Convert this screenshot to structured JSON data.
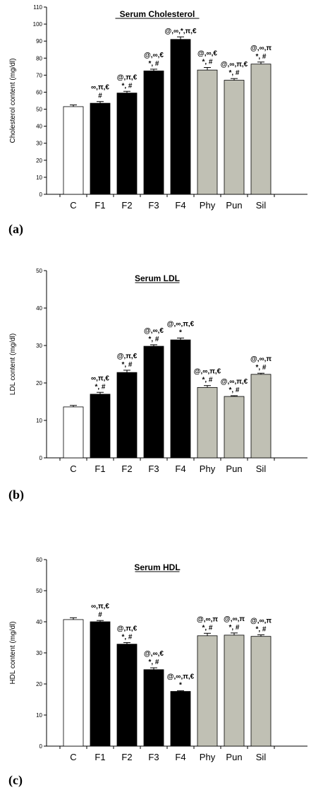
{
  "colors": {
    "control_fill": "#ffffff",
    "f_fill": "#000000",
    "extract_fill": "#c0c0b4",
    "bar_stroke": "#000000",
    "axis": "#000000"
  },
  "chart_data": [
    {
      "panel_label": "(a)",
      "type": "bar",
      "title": "Serum Cholesterol",
      "ylabel": "Cholesterol content  (mg/dl)",
      "ylim": [
        0,
        110
      ],
      "yticks": [
        0,
        10,
        20,
        30,
        40,
        50,
        60,
        70,
        80,
        90,
        100,
        110
      ],
      "categories": [
        "C",
        "F1",
        "F2",
        "F3",
        "F4",
        "Phy",
        "Pun",
        "Sil"
      ],
      "values": [
        51.5,
        53.5,
        59.5,
        72.5,
        91,
        73,
        67,
        76.5
      ],
      "errors": [
        1,
        1,
        1,
        1,
        1.5,
        1.5,
        1,
        1.2
      ],
      "groups": [
        "control",
        "f",
        "f",
        "f",
        "f",
        "extract",
        "extract",
        "extract"
      ],
      "annotations": [
        [],
        [
          "∞,π,€",
          "#"
        ],
        [
          "@,π,€",
          "*, #"
        ],
        [
          "@,∞,€",
          "*, #"
        ],
        [
          "@,∞,*,π,€"
        ],
        [
          "@,∞,€",
          "*, #"
        ],
        [
          "@,∞,π,€",
          "*, #"
        ],
        [
          "@,∞,π",
          "*, #"
        ]
      ],
      "grid": false
    },
    {
      "panel_label": "(b)",
      "type": "bar",
      "title": "Serum LDL",
      "ylabel": "LDL content  (mg/dl)",
      "ylim": [
        0,
        50
      ],
      "yticks": [
        0,
        10,
        20,
        30,
        40,
        50
      ],
      "categories": [
        "C",
        "F1",
        "F2",
        "F3",
        "F4",
        "Phy",
        "Pun",
        "Sil"
      ],
      "values": [
        13.6,
        17,
        22.8,
        29.8,
        31.5,
        18.8,
        16.4,
        22.3
      ],
      "errors": [
        0.4,
        0.5,
        0.6,
        0.4,
        0.5,
        0.5,
        0.2,
        0.3
      ],
      "groups": [
        "control",
        "f",
        "f",
        "f",
        "f",
        "extract",
        "extract",
        "extract"
      ],
      "annotations": [
        [],
        [
          "∞,π,€",
          "*, #"
        ],
        [
          "@,π,€",
          "*, #"
        ],
        [
          "@,∞,€",
          "*, #"
        ],
        [
          "@,∞,π,€",
          "*"
        ],
        [
          "@,∞,π,€",
          "*, #"
        ],
        [
          "@,∞,π,€",
          "*, #"
        ],
        [
          "@,∞,π",
          "*, #"
        ]
      ],
      "grid": false
    },
    {
      "panel_label": "(c)",
      "type": "bar",
      "title": "Serum HDL",
      "ylabel": "HDL content  (mg/dl)",
      "ylim": [
        0,
        60
      ],
      "yticks": [
        0,
        10,
        20,
        30,
        40,
        50,
        60
      ],
      "categories": [
        "C",
        "F1",
        "F2",
        "F3",
        "F4",
        "Phy",
        "Pun",
        "Sil"
      ],
      "values": [
        40.7,
        40,
        32.8,
        24.6,
        17.6,
        35.5,
        35.7,
        35.3
      ],
      "errors": [
        0.6,
        0.4,
        0.5,
        0.6,
        0.2,
        0.8,
        0.7,
        0.5
      ],
      "groups": [
        "control",
        "f",
        "f",
        "f",
        "f",
        "extract",
        "extract",
        "extract"
      ],
      "annotations": [
        [],
        [
          "∞,π,€",
          "#"
        ],
        [
          "@,π,€",
          "*, #"
        ],
        [
          "@,∞,€",
          "*, #"
        ],
        [
          "@,∞,π,€",
          "*"
        ],
        [
          "@,∞,π",
          "*, #"
        ],
        [
          "@,∞,π",
          "*, #"
        ],
        [
          "@,∞,π",
          "*, #"
        ]
      ],
      "grid": false
    }
  ]
}
